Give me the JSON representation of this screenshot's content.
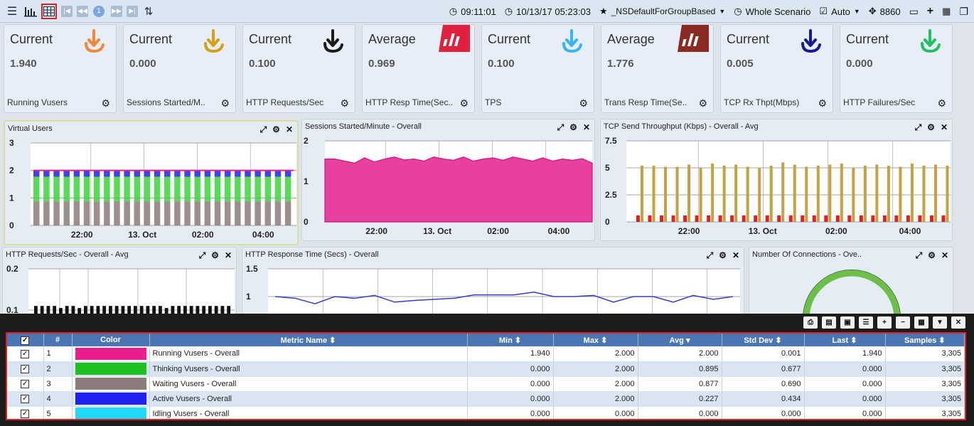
{
  "toolbar": {
    "page_number": "1",
    "time": "09:11:01",
    "datetime": "10/13/17 05:23:03",
    "favorite": "_NSDefaultForGroupBased",
    "scenario": "Whole Scenario",
    "auto": "Auto",
    "port": "8860"
  },
  "cards": [
    {
      "title": "Current",
      "value": "1.940",
      "name": "Running Vusers",
      "color": "#f08a3a"
    },
    {
      "title": "Current",
      "value": "0.000",
      "name": "Sessions Started/M..",
      "color": "#d4a017"
    },
    {
      "title": "Current",
      "value": "0.100",
      "name": "HTTP Requests/Sec",
      "color": "#1a1a1a"
    },
    {
      "title": "Average",
      "value": "0.969",
      "name": "HTTP Resp Time(Sec..",
      "color": "#e0203c"
    },
    {
      "title": "Current",
      "value": "0.100",
      "name": "TPS",
      "color": "#38b4f0"
    },
    {
      "title": "Average",
      "value": "1.776",
      "name": "Trans Resp Time(Se..",
      "color": "#8a2a22"
    },
    {
      "title": "Current",
      "value": "0.005",
      "name": "TCP Rx Thpt(Mbps)",
      "color": "#1a1a90"
    },
    {
      "title": "Current",
      "value": "0.000",
      "name": "HTTP Failures/Sec",
      "color": "#20c060"
    }
  ],
  "panels": {
    "virtual_users": "Virtual Users",
    "sessions": "Sessions Started/Minute - Overall",
    "tcp_send": "TCP Send Throughput (Kbps) - Overall - Avg",
    "http_req": "HTTP Requests/Sec - Overall - Avg",
    "http_resp": "HTTP Response Time (Secs) - Overall",
    "connections": "Number Of Connections - Ove.."
  },
  "chart_data": [
    {
      "type": "bar",
      "title": "Virtual Users",
      "ylim": [
        0,
        3
      ],
      "yticks": [
        "0",
        "1",
        "2",
        "3"
      ],
      "xticks": [
        "22:00",
        "13. Oct",
        "02:00",
        "04:00"
      ],
      "series": [
        {
          "name": "Waiting Vusers - Overall",
          "color": "#8c7b7b",
          "values": [
            0.877
          ]
        },
        {
          "name": "Thinking Vusers - Overall",
          "color": "#20c020",
          "values": [
            0.895
          ]
        },
        {
          "name": "Active Vusers - Overall",
          "color": "#2020f0",
          "values": [
            0.227
          ]
        },
        {
          "name": "Running Vusers - Overall",
          "color": "#e91e8c",
          "values": [
            2.0
          ]
        }
      ],
      "grid": true
    },
    {
      "type": "area",
      "title": "Sessions Started/Minute - Overall",
      "ylim": [
        0,
        2
      ],
      "yticks": [
        "0",
        "1",
        "2"
      ],
      "xticks": [
        "22:00",
        "13. Oct",
        "02:00",
        "04:00"
      ],
      "color": "#e8409e",
      "values": [
        1.55,
        1.55,
        1.5,
        1.45,
        1.58,
        1.48,
        1.55,
        1.6,
        1.53,
        1.55,
        1.5,
        1.6,
        1.55,
        1.52,
        1.6,
        1.5,
        1.55,
        1.58,
        1.52,
        1.6,
        1.55,
        1.5,
        1.58,
        1.5,
        1.55,
        1.52,
        1.56,
        1.45
      ],
      "grid": true
    },
    {
      "type": "bar",
      "title": "TCP Send Throughput (Kbps) - Overall - Avg",
      "ylim": [
        0,
        7.5
      ],
      "yticks": [
        "0",
        "2.5",
        "5",
        "7.5"
      ],
      "xticks": [
        "22:00",
        "13. Oct",
        "02:00",
        "04:00"
      ],
      "series": [
        {
          "name": "Avg",
          "color": "#c8a040",
          "values": [
            5.2,
            5.2,
            5.1,
            5.1,
            5.3,
            5.0,
            5.4,
            5.2,
            5.3,
            5.1,
            5.0,
            5.2,
            5.5,
            5.3,
            5.1,
            5.2,
            5.3,
            5.4,
            5.0,
            5.2,
            5.3,
            5.2,
            5.1,
            5.4,
            5.2,
            5.3,
            5.2
          ]
        },
        {
          "name": "Min",
          "color": "#e02020",
          "values": [
            0.6,
            0.6,
            0.6,
            0.6,
            0.6,
            0.6,
            0.6,
            0.6,
            0.6,
            0.6,
            0.6,
            0.6,
            0.6,
            0.6,
            0.6,
            0.6,
            0.6,
            0.6,
            0.6,
            0.6,
            0.6,
            0.6,
            0.6,
            0.6,
            0.6,
            0.6,
            0.6
          ]
        }
      ],
      "grid": true
    },
    {
      "type": "bar",
      "title": "HTTP Requests/Sec - Overall - Avg",
      "ylim": [
        0,
        0.2
      ],
      "yticks": [
        "0.1",
        "0.2"
      ],
      "color": "#111111",
      "values": [
        0.11,
        0.11,
        0.11,
        0.11,
        0.105,
        0.11,
        0.11,
        0.105,
        0.11,
        0.11,
        0.11,
        0.11,
        0.11,
        0.11,
        0.11,
        0.11,
        0.11,
        0.11,
        0.11,
        0.11,
        0.11,
        0.105,
        0.11,
        0.11,
        0.11,
        0.11,
        0.11,
        0.11,
        0.11,
        0.11,
        0.11,
        0.11
      ],
      "grid": true
    },
    {
      "type": "line",
      "title": "HTTP Response Time (Secs) - Overall",
      "ylim": [
        0.7,
        1.5
      ],
      "yticks": [
        "1",
        "1.5"
      ],
      "color": "#3a3ac8",
      "values": [
        1.0,
        0.97,
        0.87,
        1.0,
        0.97,
        1.02,
        0.9,
        0.93,
        0.95,
        0.97,
        1.03,
        1.03,
        1.03,
        1.08,
        1.0,
        1.0,
        1.02,
        0.9,
        1.0,
        1.0,
        0.9,
        1.02,
        0.95,
        1.0
      ],
      "grid": true
    }
  ],
  "table": {
    "columns": [
      "#",
      "Color",
      "Metric Name",
      "Min",
      "Max",
      "Avg",
      "Std Dev",
      "Last",
      "Samples"
    ],
    "rows": [
      {
        "n": "1",
        "color": "#e91e8c",
        "name": "Running Vusers - Overall",
        "min": "1.940",
        "max": "2.000",
        "avg": "2.000",
        "std": "0.001",
        "last": "1.940",
        "samples": "3,305"
      },
      {
        "n": "2",
        "color": "#20c020",
        "name": "Thinking Vusers - Overall",
        "min": "0.000",
        "max": "2.000",
        "avg": "0.895",
        "std": "0.677",
        "last": "0.000",
        "samples": "3,305"
      },
      {
        "n": "3",
        "color": "#8c7b7b",
        "name": "Waiting Vusers - Overall",
        "min": "0.000",
        "max": "2.000",
        "avg": "0.877",
        "std": "0.690",
        "last": "0.000",
        "samples": "3,305"
      },
      {
        "n": "4",
        "color": "#2020f0",
        "name": "Active Vusers - Overall",
        "min": "0.000",
        "max": "2.000",
        "avg": "0.227",
        "std": "0.434",
        "last": "0.000",
        "samples": "3,305"
      },
      {
        "n": "5",
        "color": "#20d8f8",
        "name": "Idling Vusers - Overall",
        "min": "0.000",
        "max": "0.000",
        "avg": "0.000",
        "std": "0.000",
        "last": "0.000",
        "samples": "3,305"
      }
    ]
  }
}
